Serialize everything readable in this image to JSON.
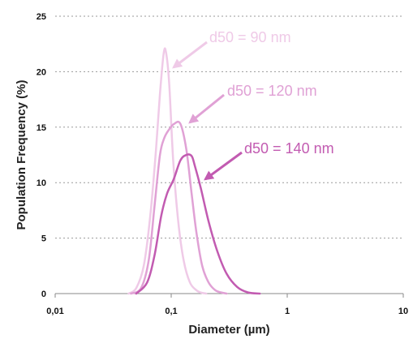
{
  "chart_data": {
    "type": "line",
    "xscale": "log",
    "xlim": [
      0.01,
      10
    ],
    "ylim": [
      0,
      25
    ],
    "xlabel": "Diameter (µm)",
    "ylabel": "Population Frequency (%)",
    "xticks": [
      0.01,
      0.1,
      1,
      10
    ],
    "xtick_labels": [
      "0,01",
      "0,1",
      "1",
      "10"
    ],
    "yticks": [
      0,
      5,
      10,
      15,
      20,
      25
    ],
    "ytick_labels": [
      "0",
      "5",
      "10",
      "15",
      "20",
      "25"
    ],
    "grid": "horizontal dashed",
    "series": [
      {
        "color": "#efcae7",
        "x": [
          0.043,
          0.05,
          0.058,
          0.066,
          0.074,
          0.08,
          0.086,
          0.09,
          0.096,
          0.104,
          0.115,
          0.128,
          0.145,
          0.165,
          0.18,
          0.2
        ],
        "y": [
          0,
          0.5,
          2.5,
          7,
          13,
          18,
          21.6,
          21.8,
          19,
          12,
          6.5,
          3,
          1,
          0.3,
          0.1,
          0
        ]
      },
      {
        "color": "#e0a1d5",
        "x": [
          0.045,
          0.055,
          0.064,
          0.072,
          0.08,
          0.087,
          0.096,
          0.106,
          0.12,
          0.135,
          0.15,
          0.165,
          0.185,
          0.21,
          0.24,
          0.27,
          0.3
        ],
        "y": [
          0,
          0.5,
          3,
          8,
          12.5,
          14,
          14.8,
          15.3,
          15.3,
          13,
          9,
          5.5,
          2.5,
          1,
          0.3,
          0.1,
          0
        ]
      },
      {
        "color": "#c25bb1",
        "x": [
          0.05,
          0.062,
          0.072,
          0.082,
          0.092,
          0.105,
          0.12,
          0.135,
          0.15,
          0.16,
          0.18,
          0.21,
          0.25,
          0.3,
          0.37,
          0.46,
          0.58
        ],
        "y": [
          0,
          1,
          3.5,
          7,
          9,
          10.3,
          12,
          12.5,
          12.4,
          11.5,
          9.5,
          6.5,
          3.8,
          1.8,
          0.6,
          0.1,
          0
        ]
      }
    ],
    "annotations": [
      {
        "text": "d50 = 90 nm",
        "color": "#efcae7",
        "point_x": 0.09,
        "point_y": 19.5
      },
      {
        "text": "d50 = 120 nm",
        "color": "#e0a1d5",
        "point_x": 0.12,
        "point_y": 15.3
      },
      {
        "text": "d50 = 140 nm",
        "color": "#c25bb1",
        "point_x": 0.17,
        "point_y": 10
      }
    ]
  }
}
